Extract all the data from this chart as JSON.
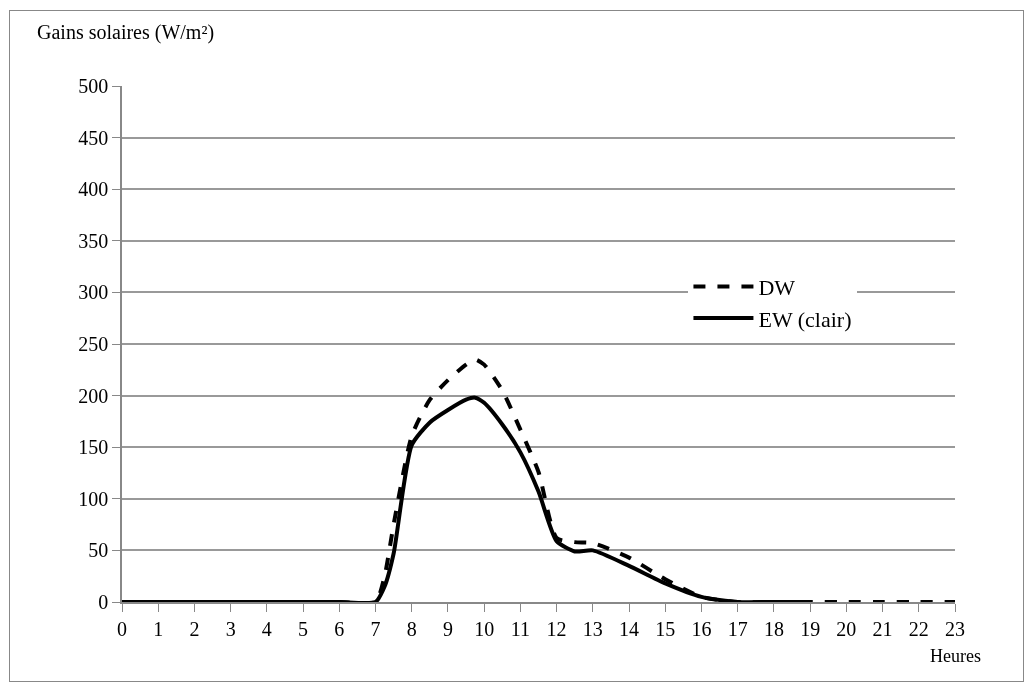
{
  "chart_data": {
    "type": "line",
    "ylabel": "Gains solaires (W/m²)",
    "xlabel": "Heures",
    "x": [
      0,
      1,
      2,
      3,
      4,
      5,
      6,
      7,
      7.25,
      7.5,
      8,
      8.5,
      9,
      9.5,
      9.75,
      10,
      10.5,
      11,
      11.5,
      12,
      12.5,
      13,
      14,
      15,
      16,
      17,
      18,
      19,
      20,
      21,
      22,
      23
    ],
    "series": [
      {
        "name": "DW",
        "color": "#000000",
        "line_style": "dashed",
        "values": [
          0,
          0,
          0,
          0,
          0,
          0,
          0,
          0,
          25,
          75,
          161,
          196,
          215,
          230,
          235,
          230,
          205,
          167,
          126,
          62,
          58,
          57,
          43,
          22,
          5,
          0,
          0,
          0,
          0,
          0,
          0,
          0
        ]
      },
      {
        "name": "EW (clair)",
        "color": "#000000",
        "line_style": "solid",
        "values": [
          0,
          0,
          0,
          0,
          0,
          0,
          0,
          0,
          15,
          47,
          152,
          174,
          186,
          196,
          198,
          193,
          172,
          145,
          107,
          59,
          49,
          50,
          35,
          18,
          5,
          0,
          0,
          0,
          null,
          null,
          null,
          null
        ]
      }
    ],
    "xlim": [
      0,
      23
    ],
    "xticks": [
      0,
      1,
      2,
      3,
      4,
      5,
      6,
      7,
      8,
      9,
      10,
      11,
      12,
      13,
      14,
      15,
      16,
      17,
      18,
      19,
      20,
      21,
      22,
      23
    ],
    "ylim": [
      0,
      500
    ],
    "yticks": [
      0,
      50,
      100,
      150,
      200,
      250,
      300,
      350,
      400,
      450,
      500
    ],
    "grid": "y",
    "legend": "right",
    "marker": "none"
  }
}
